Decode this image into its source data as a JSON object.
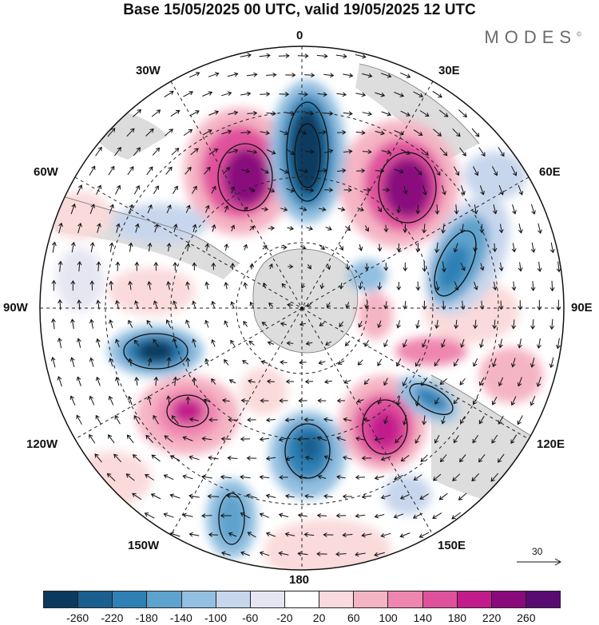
{
  "title": "Base 15/05/2025 00 UTC, valid 19/05/2025 12 UTC",
  "brand": "MODES",
  "brand_mark": "©",
  "longitude_labels": {
    "top": "0",
    "bottom": "180",
    "left": "90W",
    "right": "90E",
    "top_left_1": "30W",
    "top_left_2": "60W",
    "top_right_1": "30E",
    "top_right_2": "60E",
    "bottom_left_1": "120W",
    "bottom_left_2": "150W",
    "bottom_right_1": "120E",
    "bottom_right_2": "150E"
  },
  "reference_vector": {
    "label": "30"
  },
  "colorbar": {
    "colors": [
      "#0b3a5e",
      "#1a5f8f",
      "#2f81b5",
      "#5ea3cd",
      "#93bfe0",
      "#c7d6ec",
      "#e6e6f3",
      "#ffffff",
      "#fadada",
      "#f5b4c4",
      "#ef86b0",
      "#e0519c",
      "#c21c8c",
      "#8a0a7e",
      "#5a0b73"
    ],
    "tick_labels": [
      "-260",
      "-220",
      "-180",
      "-140",
      "-100",
      "-60",
      "-20",
      "20",
      "60",
      "100",
      "140",
      "180",
      "220",
      "260"
    ]
  }
}
